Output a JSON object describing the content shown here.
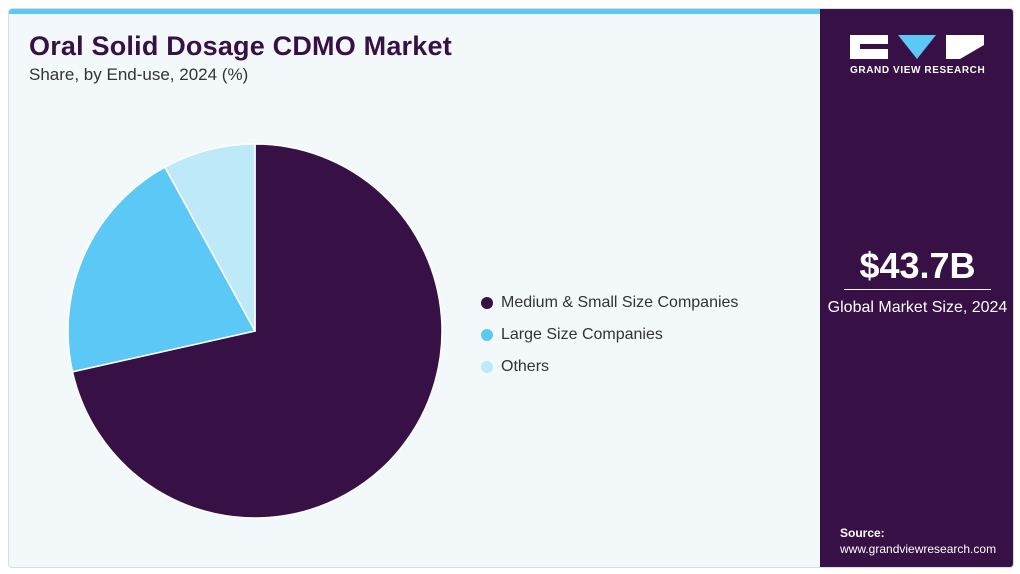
{
  "header": {
    "title": "Oral Solid Dosage CDMO Market",
    "subtitle": "Share, by End-use, 2024 (%)"
  },
  "chart_data": {
    "type": "pie",
    "title": "Oral Solid Dosage CDMO Market",
    "subtitle": "Share, by End-use, 2024 (%)",
    "categories": [
      "Medium & Small Size Companies",
      "Large Size Companies",
      "Others"
    ],
    "values": [
      71.5,
      20.5,
      8.0
    ],
    "colors": [
      "#371145",
      "#5bc8f5",
      "#bde9f9"
    ],
    "legend_position": "right"
  },
  "sidebar": {
    "logo_text": "GRAND VIEW RESEARCH",
    "market_value": "$43.7B",
    "market_label": "Global Market Size, 2024",
    "source_label": "Source:",
    "source_url": "www.grandviewresearch.com"
  },
  "colors": {
    "panel": "#371145",
    "accent": "#5bc8f5",
    "background": "#f3f8fb"
  }
}
